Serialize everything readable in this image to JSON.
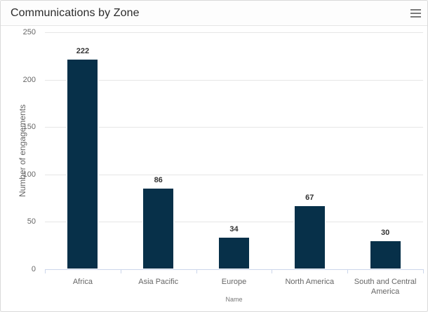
{
  "card": {
    "title": "Communications by Zone",
    "menu_icon": "hamburger-icon"
  },
  "colors": {
    "bar": "#073049",
    "gridline": "#e6e6e6",
    "axis_line": "#ccd6eb",
    "tick_label": "#666666",
    "data_label": "#333333",
    "card_border": "#d9d9d9"
  },
  "chart_data": {
    "type": "bar",
    "title": "Communications by Zone",
    "categories": [
      "Africa",
      "Asia Pacific",
      "Europe",
      "North America",
      "South and Central America"
    ],
    "values": [
      222,
      86,
      34,
      67,
      30
    ],
    "xlabel": "Name",
    "ylabel": "Number of engagements",
    "ylim": [
      0,
      250
    ],
    "yticks": [
      0,
      50,
      100,
      150,
      200,
      250
    ],
    "grid": true,
    "legend": false,
    "data_labels": true
  }
}
